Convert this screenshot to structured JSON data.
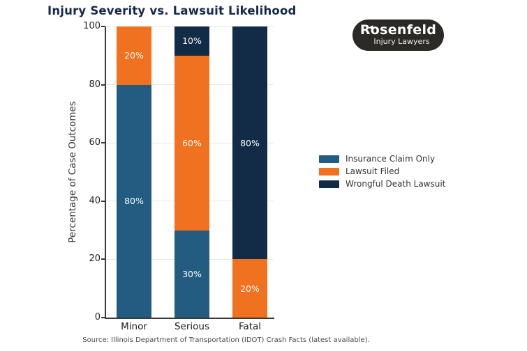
{
  "title": "Injury Severity vs. Lawsuit Likelihood",
  "logo": {
    "name": "Rosenfeld",
    "tagline": "Injury Lawyers",
    "background_color": "#2b2a27",
    "text_color": "#ffffff"
  },
  "source": "Source: Illinois Department of Transportation (IDOT) Crash Facts (latest available).",
  "colors": {
    "title": "#16294a",
    "insurance_claim_only": "#235c81",
    "lawsuit_filed": "#f0711f",
    "wrongful_death_lawsuit": "#122c47",
    "gridline": "#e8e8e8",
    "axis": "#3a3a3a"
  },
  "chart_data": {
    "type": "bar",
    "stacked": true,
    "title": "Injury Severity vs. Lawsuit Likelihood",
    "categories": [
      "Minor",
      "Serious",
      "Fatal"
    ],
    "series": [
      {
        "name": "Insurance Claim Only",
        "color": "#235c81",
        "values": [
          80,
          30,
          0
        ]
      },
      {
        "name": "Lawsuit Filed",
        "color": "#f0711f",
        "values": [
          20,
          60,
          20
        ]
      },
      {
        "name": "Wrongful Death Lawsuit",
        "color": "#122c47",
        "values": [
          0,
          10,
          80
        ]
      }
    ],
    "bar_labels": [
      "80%",
      "20%",
      "30%",
      "60%",
      "10%",
      "20%",
      "80%"
    ],
    "xlabel": "",
    "ylabel": "Percentage of Case Outcomes",
    "ylim": [
      0,
      100
    ],
    "yticks": [
      0,
      20,
      40,
      60,
      80,
      100
    ],
    "grid": true,
    "legend_position": "center-right"
  }
}
